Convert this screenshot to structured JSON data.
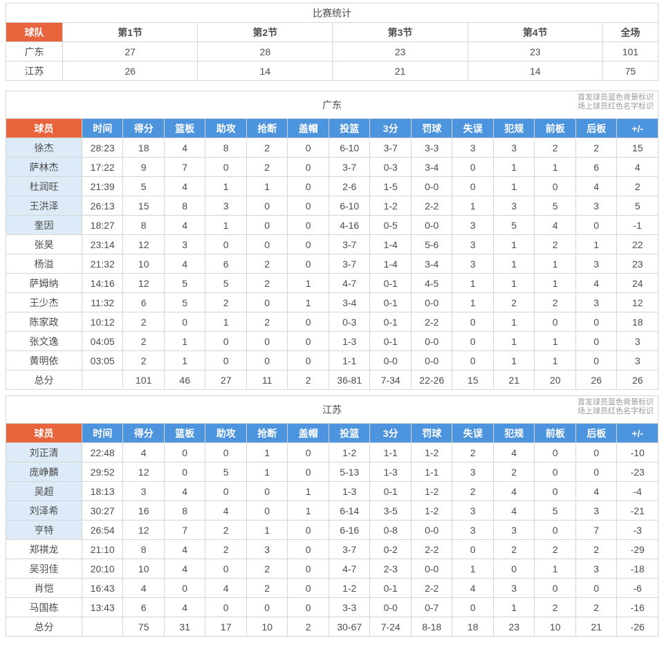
{
  "theme": {
    "orange": "#e8643c",
    "blue": "#4d94df",
    "starter-bg": "#dcebf7",
    "border": "#d5d5d5",
    "text": "#4c4c4c",
    "note": "#9a9a9a"
  },
  "game_summary": {
    "title": "比赛统计",
    "columns": [
      "球队",
      "第1节",
      "第2节",
      "第3节",
      "第4节",
      "全场"
    ],
    "rows": [
      {
        "team": "广东",
        "values": [
          "27",
          "28",
          "23",
          "23",
          "101"
        ]
      },
      {
        "team": "江苏",
        "values": [
          "26",
          "14",
          "21",
          "14",
          "75"
        ]
      }
    ]
  },
  "legend": {
    "starter": "首发球员蓝色背景标识",
    "oncourt": "场上球员红色名字标识"
  },
  "stat_columns": [
    "球员",
    "时间",
    "得分",
    "篮板",
    "助攻",
    "抢断",
    "盖帽",
    "投篮",
    "3分",
    "罚球",
    "失误",
    "犯规",
    "前板",
    "后板",
    "+/-"
  ],
  "teams": [
    {
      "name": "广东",
      "players": [
        {
          "name": "徐杰",
          "starter": true,
          "stats": [
            "28:23",
            "18",
            "4",
            "8",
            "2",
            "0",
            "6-10",
            "3-7",
            "3-3",
            "3",
            "3",
            "2",
            "2",
            "15"
          ]
        },
        {
          "name": "萨林杰",
          "starter": true,
          "stats": [
            "17:22",
            "9",
            "7",
            "0",
            "2",
            "0",
            "3-7",
            "0-3",
            "3-4",
            "0",
            "1",
            "1",
            "6",
            "4"
          ]
        },
        {
          "name": "杜润旺",
          "starter": true,
          "stats": [
            "21:39",
            "5",
            "4",
            "1",
            "1",
            "0",
            "2-6",
            "1-5",
            "0-0",
            "0",
            "1",
            "0",
            "4",
            "2"
          ]
        },
        {
          "name": "王洪泽",
          "starter": true,
          "stats": [
            "26:13",
            "15",
            "8",
            "3",
            "0",
            "0",
            "6-10",
            "1-2",
            "2-2",
            "1",
            "3",
            "5",
            "3",
            "5"
          ]
        },
        {
          "name": "奎因",
          "starter": true,
          "stats": [
            "18:27",
            "8",
            "4",
            "1",
            "0",
            "0",
            "4-16",
            "0-5",
            "0-0",
            "3",
            "5",
            "4",
            "0",
            "-1"
          ]
        },
        {
          "name": "张昊",
          "starter": false,
          "stats": [
            "23:14",
            "12",
            "3",
            "0",
            "0",
            "0",
            "3-7",
            "1-4",
            "5-6",
            "3",
            "1",
            "2",
            "1",
            "22"
          ]
        },
        {
          "name": "杨溢",
          "starter": false,
          "stats": [
            "21:32",
            "10",
            "4",
            "6",
            "2",
            "0",
            "3-7",
            "1-4",
            "3-4",
            "3",
            "1",
            "1",
            "3",
            "23"
          ]
        },
        {
          "name": "萨姆纳",
          "starter": false,
          "stats": [
            "14:16",
            "12",
            "5",
            "5",
            "2",
            "1",
            "4-7",
            "0-1",
            "4-5",
            "1",
            "1",
            "1",
            "4",
            "24"
          ]
        },
        {
          "name": "王少杰",
          "starter": false,
          "stats": [
            "11:32",
            "6",
            "5",
            "2",
            "0",
            "1",
            "3-4",
            "0-1",
            "0-0",
            "1",
            "2",
            "2",
            "3",
            "12"
          ]
        },
        {
          "name": "陈家政",
          "starter": false,
          "stats": [
            "10:12",
            "2",
            "0",
            "1",
            "2",
            "0",
            "0-3",
            "0-1",
            "2-2",
            "0",
            "1",
            "0",
            "0",
            "18"
          ]
        },
        {
          "name": "张文逸",
          "starter": false,
          "stats": [
            "04:05",
            "2",
            "1",
            "0",
            "0",
            "0",
            "1-3",
            "0-1",
            "0-0",
            "0",
            "1",
            "1",
            "0",
            "3"
          ]
        },
        {
          "name": "黄明依",
          "starter": false,
          "stats": [
            "03:05",
            "2",
            "1",
            "0",
            "0",
            "0",
            "1-1",
            "0-0",
            "0-0",
            "0",
            "1",
            "1",
            "0",
            "3"
          ]
        }
      ],
      "total": {
        "label": "总分",
        "stats": [
          "",
          "101",
          "46",
          "27",
          "11",
          "2",
          "36-81",
          "7-34",
          "22-26",
          "15",
          "21",
          "20",
          "26",
          "26"
        ]
      }
    },
    {
      "name": "江苏",
      "players": [
        {
          "name": "刘正清",
          "starter": true,
          "stats": [
            "22:48",
            "4",
            "0",
            "0",
            "1",
            "0",
            "1-2",
            "1-1",
            "1-2",
            "2",
            "4",
            "0",
            "0",
            "-10"
          ]
        },
        {
          "name": "庞峥麟",
          "starter": true,
          "stats": [
            "29:52",
            "12",
            "0",
            "5",
            "1",
            "0",
            "5-13",
            "1-3",
            "1-1",
            "3",
            "2",
            "0",
            "0",
            "-23"
          ]
        },
        {
          "name": "吴超",
          "starter": true,
          "stats": [
            "18:13",
            "3",
            "4",
            "0",
            "0",
            "1",
            "1-3",
            "0-1",
            "1-2",
            "2",
            "4",
            "0",
            "4",
            "-4"
          ]
        },
        {
          "name": "刘泽希",
          "starter": true,
          "stats": [
            "30:27",
            "16",
            "8",
            "4",
            "0",
            "1",
            "6-14",
            "3-5",
            "1-2",
            "3",
            "4",
            "5",
            "3",
            "-21"
          ]
        },
        {
          "name": "亨特",
          "starter": true,
          "stats": [
            "26:54",
            "12",
            "7",
            "2",
            "1",
            "0",
            "6-16",
            "0-8",
            "0-0",
            "3",
            "3",
            "0",
            "7",
            "-3"
          ]
        },
        {
          "name": "郑祺龙",
          "starter": false,
          "stats": [
            "21:10",
            "8",
            "4",
            "2",
            "3",
            "0",
            "3-7",
            "0-2",
            "2-2",
            "0",
            "2",
            "2",
            "2",
            "-29"
          ]
        },
        {
          "name": "吴羽佳",
          "starter": false,
          "stats": [
            "20:10",
            "10",
            "4",
            "0",
            "2",
            "0",
            "4-7",
            "2-3",
            "0-0",
            "1",
            "0",
            "1",
            "3",
            "-18"
          ]
        },
        {
          "name": "肖恺",
          "starter": false,
          "stats": [
            "16:43",
            "4",
            "0",
            "4",
            "2",
            "0",
            "1-2",
            "0-1",
            "2-2",
            "4",
            "3",
            "0",
            "0",
            "-6"
          ]
        },
        {
          "name": "马国栋",
          "starter": false,
          "stats": [
            "13:43",
            "6",
            "4",
            "0",
            "0",
            "0",
            "3-3",
            "0-0",
            "0-7",
            "0",
            "1",
            "2",
            "2",
            "-16"
          ]
        }
      ],
      "total": {
        "label": "总分",
        "stats": [
          "",
          "75",
          "31",
          "17",
          "10",
          "2",
          "30-67",
          "7-24",
          "8-18",
          "18",
          "23",
          "10",
          "21",
          "-26"
        ]
      }
    }
  ]
}
